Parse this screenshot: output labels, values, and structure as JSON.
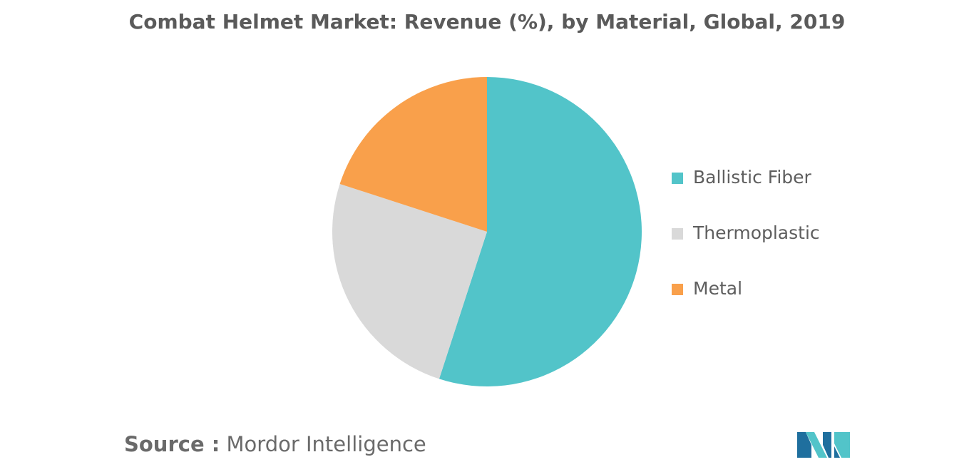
{
  "title": "Combat Helmet Market: Revenue (%), by Material, Global, 2019",
  "source": {
    "label": "Source :",
    "text": "Mordor Intelligence"
  },
  "logo": {
    "name": "mordor-intelligence-logo",
    "colors": [
      "#1f6f9e",
      "#52c4c9"
    ]
  },
  "chart_data": {
    "type": "pie",
    "title": "Combat Helmet Market: Revenue (%), by Material, Global, 2019",
    "slices": [
      {
        "label": "Ballistic Fiber",
        "value": 55,
        "color": "#52c4c9"
      },
      {
        "label": "Thermoplastic",
        "value": 25,
        "color": "#d9d9d9"
      },
      {
        "label": "Metal",
        "value": 20,
        "color": "#f9a04b"
      }
    ],
    "legend_position": "right",
    "start_angle_deg": 0,
    "direction": "clockwise"
  }
}
